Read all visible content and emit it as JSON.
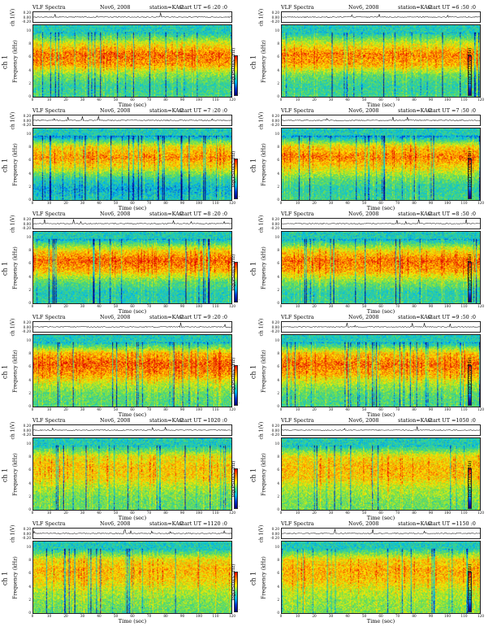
{
  "common": {
    "left_title": "VLF Spectra",
    "date": "Nov6, 2008",
    "station": "station=KAG",
    "wave_label": "ch 1(V)",
    "freq_label_upper": "ch 1",
    "freq_label": "Frequency (kHz)",
    "x_label": "Time (sec)",
    "cbar_label": "log(PSD)(V²/Hz)",
    "wave_ticks": [
      "0.20",
      "0.00",
      "-0.20"
    ],
    "freq_ticks": [
      "10",
      "8",
      "6",
      "4",
      "2",
      "0"
    ],
    "time_ticks": [
      "0",
      "10",
      "20",
      "30",
      "40",
      "50",
      "60",
      "70",
      "80",
      "90",
      "100",
      "110",
      "120"
    ],
    "cbar_ticks": [
      "-",
      "-"
    ]
  },
  "panels": [
    {
      "start_ut": "start  UT =6 :20 :0"
    },
    {
      "start_ut": "start  UT =6 :50 :0"
    },
    {
      "start_ut": "start  UT =7 :20 :0"
    },
    {
      "start_ut": "start  UT =7 :50 :0"
    },
    {
      "start_ut": "start  UT =8 :20 :0"
    },
    {
      "start_ut": "start  UT =8 :50 :0"
    },
    {
      "start_ut": "start  UT =9 :20 :0"
    },
    {
      "start_ut": "start  UT =9 :50 :0"
    },
    {
      "start_ut": "start  UT =1020 :0"
    },
    {
      "start_ut": "start  UT =1050 :0"
    },
    {
      "start_ut": "start  UT =1120 :0"
    },
    {
      "start_ut": "start  UT =1150 :0"
    }
  ],
  "chart_data": [
    {
      "type": "heatmap",
      "title": "VLF Spectra  Nov6, 2008  station=KAG  start UT =6 :20 :0",
      "xlabel": "Time (sec)",
      "ylabel": "Frequency (kHz)",
      "xlim": [
        0,
        120
      ],
      "ylim": [
        0,
        10
      ],
      "waveform_ylim": [
        -0.2,
        0.2
      ],
      "colorbar_label": "log(PSD)(V²/Hz)",
      "intensity": [
        0.45,
        0.42,
        0.55,
        0.82,
        0.88,
        0.68,
        0.35
      ]
    },
    {
      "type": "heatmap",
      "title": "VLF Spectra  Nov6, 2008  station=KAG  start UT =6 :50 :0",
      "xlabel": "Time (sec)",
      "ylabel": "Frequency (kHz)",
      "xlim": [
        0,
        120
      ],
      "ylim": [
        0,
        10
      ],
      "waveform_ylim": [
        -0.2,
        0.2
      ],
      "colorbar_label": "log(PSD)(V²/Hz)",
      "intensity": [
        0.45,
        0.42,
        0.52,
        0.8,
        0.86,
        0.66,
        0.35
      ]
    },
    {
      "type": "heatmap",
      "title": "VLF Spectra  Nov6, 2008  station=KAG  start UT =7 :20 :0",
      "xlabel": "Time (sec)",
      "ylabel": "Frequency (kHz)",
      "xlim": [
        0,
        120
      ],
      "ylim": [
        0,
        10
      ],
      "waveform_ylim": [
        -0.2,
        0.2
      ],
      "colorbar_label": "log(PSD)(V²/Hz)",
      "intensity": [
        0.38,
        0.3,
        0.42,
        0.7,
        0.84,
        0.72,
        0.25
      ]
    },
    {
      "type": "heatmap",
      "title": "VLF Spectra  Nov6, 2008  station=KAG  start UT =7 :50 :0",
      "xlabel": "Time (sec)",
      "ylabel": "Frequency (kHz)",
      "xlim": [
        0,
        120
      ],
      "ylim": [
        0,
        10
      ],
      "waveform_ylim": [
        -0.2,
        0.2
      ],
      "colorbar_label": "log(PSD)(V²/Hz)",
      "intensity": [
        0.45,
        0.4,
        0.52,
        0.72,
        0.86,
        0.74,
        0.25
      ]
    },
    {
      "type": "heatmap",
      "title": "VLF Spectra  Nov6, 2008  station=KAG  start UT =8 :20 :0",
      "xlabel": "Time (sec)",
      "ylabel": "Frequency (kHz)",
      "xlim": [
        0,
        120
      ],
      "ylim": [
        0,
        10
      ],
      "waveform_ylim": [
        -0.2,
        0.2
      ],
      "colorbar_label": "log(PSD)(V²/Hz)",
      "intensity": [
        0.4,
        0.38,
        0.5,
        0.78,
        0.9,
        0.72,
        0.3
      ]
    },
    {
      "type": "heatmap",
      "title": "VLF Spectra  Nov6, 2008  station=KAG  start UT =8 :50 :0",
      "xlabel": "Time (sec)",
      "ylabel": "Frequency (kHz)",
      "xlim": [
        0,
        120
      ],
      "ylim": [
        0,
        10
      ],
      "waveform_ylim": [
        -0.2,
        0.2
      ],
      "colorbar_label": "log(PSD)(V²/Hz)",
      "intensity": [
        0.42,
        0.4,
        0.55,
        0.8,
        0.88,
        0.7,
        0.3
      ]
    },
    {
      "type": "heatmap",
      "title": "VLF Spectra  Nov6, 2008  station=KAG  start UT =9 :20 :0",
      "xlabel": "Time (sec)",
      "ylabel": "Frequency (kHz)",
      "xlim": [
        0,
        120
      ],
      "ylim": [
        0,
        10
      ],
      "waveform_ylim": [
        -0.2,
        0.2
      ],
      "colorbar_label": "log(PSD)(V²/Hz)",
      "intensity": [
        0.48,
        0.5,
        0.62,
        0.82,
        0.9,
        0.78,
        0.32
      ]
    },
    {
      "type": "heatmap",
      "title": "VLF Spectra  Nov6, 2008  station=KAG  start UT =9 :50 :0",
      "xlabel": "Time (sec)",
      "ylabel": "Frequency (kHz)",
      "xlim": [
        0,
        120
      ],
      "ylim": [
        0,
        10
      ],
      "waveform_ylim": [
        -0.2,
        0.2
      ],
      "colorbar_label": "log(PSD)(V²/Hz)",
      "intensity": [
        0.46,
        0.48,
        0.6,
        0.8,
        0.88,
        0.76,
        0.32
      ]
    },
    {
      "type": "heatmap",
      "title": "VLF Spectra  Nov6, 2008  station=KAG  start UT =1020 :0",
      "xlabel": "Time (sec)",
      "ylabel": "Frequency (kHz)",
      "xlim": [
        0,
        120
      ],
      "ylim": [
        0,
        10
      ],
      "waveform_ylim": [
        -0.2,
        0.2
      ],
      "colorbar_label": "log(PSD)(V²/Hz)",
      "intensity": [
        0.5,
        0.52,
        0.6,
        0.74,
        0.76,
        0.7,
        0.35
      ]
    },
    {
      "type": "heatmap",
      "title": "VLF Spectra  Nov6, 2008  station=KAG  start UT =1050 :0",
      "xlabel": "Time (sec)",
      "ylabel": "Frequency (kHz)",
      "xlim": [
        0,
        120
      ],
      "ylim": [
        0,
        10
      ],
      "waveform_ylim": [
        -0.2,
        0.2
      ],
      "colorbar_label": "log(PSD)(V²/Hz)",
      "intensity": [
        0.52,
        0.55,
        0.62,
        0.76,
        0.78,
        0.72,
        0.35
      ]
    },
    {
      "type": "heatmap",
      "title": "VLF Spectra  Nov6, 2008  station=KAG  start UT =1120 :0",
      "xlabel": "Time (sec)",
      "ylabel": "Frequency (kHz)",
      "xlim": [
        0,
        120
      ],
      "ylim": [
        0,
        10
      ],
      "waveform_ylim": [
        -0.2,
        0.2
      ],
      "colorbar_label": "log(PSD)(V²/Hz)",
      "intensity": [
        0.5,
        0.55,
        0.62,
        0.74,
        0.78,
        0.72,
        0.35
      ]
    },
    {
      "type": "heatmap",
      "title": "VLF Spectra  Nov6, 2008  station=KAG  start UT =1150 :0",
      "xlabel": "Time (sec)",
      "ylabel": "Frequency (kHz)",
      "xlim": [
        0,
        120
      ],
      "ylim": [
        0,
        10
      ],
      "waveform_ylim": [
        -0.2,
        0.2
      ],
      "colorbar_label": "log(PSD)(V²/Hz)",
      "intensity": [
        0.55,
        0.58,
        0.64,
        0.76,
        0.8,
        0.74,
        0.38
      ]
    }
  ]
}
